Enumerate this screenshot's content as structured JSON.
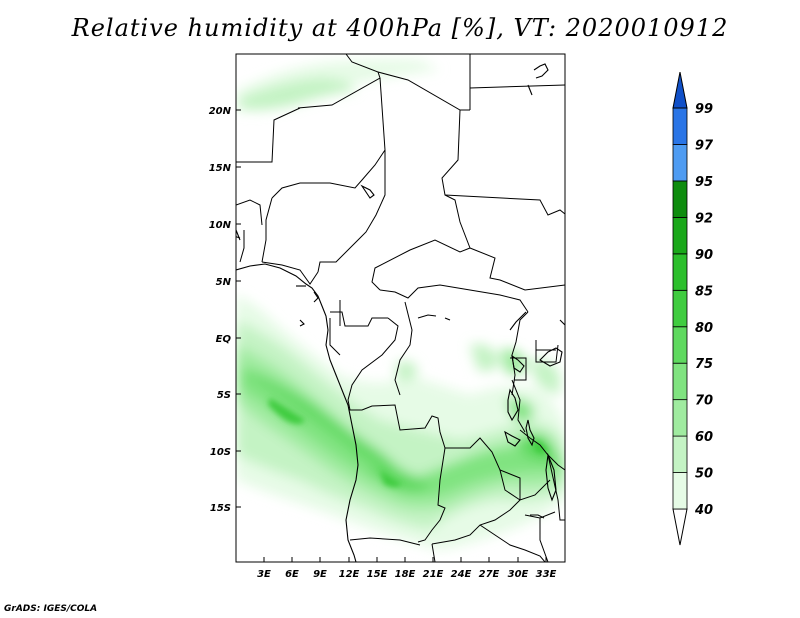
{
  "title": "Relative humidity at 400hPa [%], VT: 2020010912",
  "credit": "GrADS: IGES/COLA",
  "map": {
    "lat_ticks": [
      "20N",
      "15N",
      "10N",
      "5N",
      "EQ",
      "5S",
      "10S",
      "15S"
    ],
    "lon_ticks": [
      "3E",
      "6E",
      "9E",
      "12E",
      "15E",
      "18E",
      "21E",
      "24E",
      "27E",
      "30E",
      "33E"
    ]
  },
  "colorbar": {
    "levels": [
      "40",
      "50",
      "60",
      "70",
      "75",
      "80",
      "85",
      "90",
      "92",
      "95",
      "97",
      "99"
    ],
    "colors": [
      "#ffffff",
      "#e6fbe6",
      "#c4f3c4",
      "#a0eba0",
      "#80e380",
      "#5fd95f",
      "#40cc40",
      "#2cbf2c",
      "#1aa81a",
      "#0e8c0e",
      "#4f9cf2",
      "#2a75e6",
      "#1050c8"
    ]
  }
}
